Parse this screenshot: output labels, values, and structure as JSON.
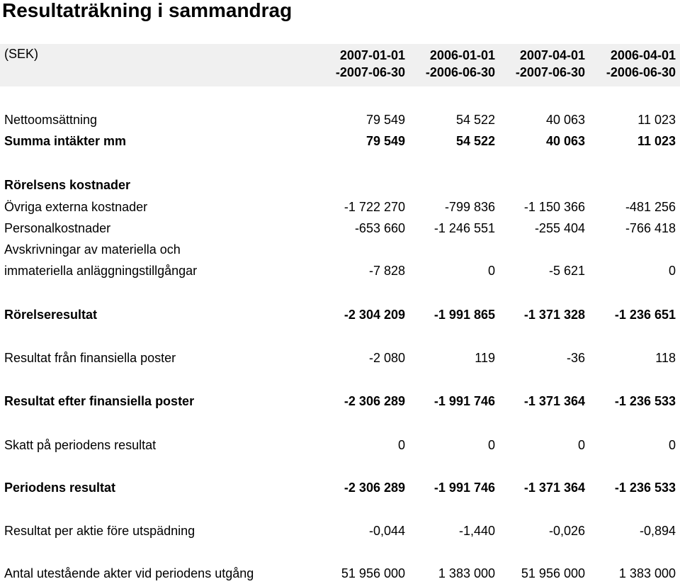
{
  "title": "Resultaträkning i sammandrag",
  "currency": "(SEK)",
  "columns": [
    {
      "line1": "2007-01-01",
      "line2": "-2007-06-30"
    },
    {
      "line1": "2006-01-01",
      "line2": "-2006-06-30"
    },
    {
      "line1": "2007-04-01",
      "line2": "-2007-06-30"
    },
    {
      "line1": "2006-04-01",
      "line2": "-2006-06-30"
    }
  ],
  "rows": [
    {
      "label": "Nettoomsättning",
      "values": [
        "79 549",
        "54 522",
        "40 063",
        "11 023"
      ]
    },
    {
      "label": "Summa intäkter mm",
      "values": [
        "79 549",
        "54 522",
        "40 063",
        "11 023"
      ]
    },
    {
      "label": "Rörelsens kostnader",
      "values": [
        "",
        "",
        "",
        ""
      ]
    },
    {
      "label": "Övriga externa kostnader",
      "values": [
        "-1 722 270",
        "-799 836",
        "-1 150 366",
        "-481 256"
      ]
    },
    {
      "label": "Personalkostnader",
      "values": [
        "-653 660",
        "-1 246 551",
        "-255 404",
        "-766 418"
      ]
    },
    {
      "label": "Avskrivningar av materiella och",
      "values": [
        "",
        "",
        "",
        ""
      ]
    },
    {
      "label": "immateriella anläggningstillgångar",
      "values": [
        "-7 828",
        "0",
        "-5 621",
        "0"
      ]
    },
    {
      "label": "Rörelseresultat",
      "values": [
        "-2 304 209",
        "-1 991 865",
        "-1 371 328",
        "-1 236 651"
      ]
    },
    {
      "label": "Resultat från finansiella poster",
      "values": [
        "-2 080",
        "119",
        "-36",
        "118"
      ]
    },
    {
      "label": "Resultat efter finansiella poster",
      "values": [
        "-2 306 289",
        "-1 991 746",
        "-1 371 364",
        "-1 236 533"
      ]
    },
    {
      "label": "Skatt på periodens resultat",
      "values": [
        "0",
        "0",
        "0",
        "0"
      ]
    },
    {
      "label": "Periodens resultat",
      "values": [
        "-2 306 289",
        "-1 991 746",
        "-1 371 364",
        "-1 236 533"
      ]
    },
    {
      "label": "Resultat per aktie före utspädning",
      "values": [
        "-0,044",
        "-1,440",
        "-0,026",
        "-0,894"
      ]
    },
    {
      "label": "Antal utestående akter vid periodens utgång",
      "values": [
        "51 956 000",
        "1 383 000",
        "51 956 000",
        "1 383 000"
      ]
    }
  ]
}
